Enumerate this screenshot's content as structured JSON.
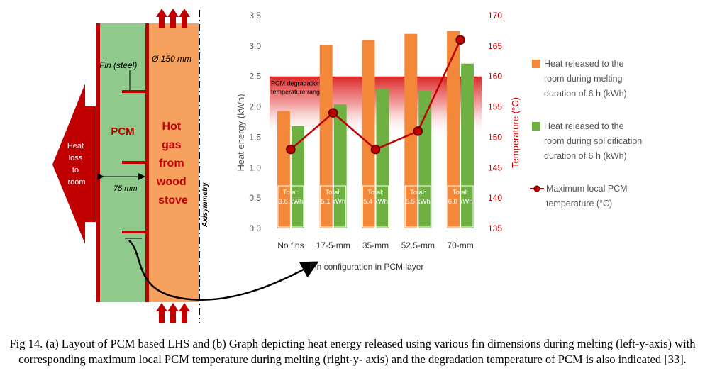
{
  "schematic": {
    "heat_loss_label": [
      "Heat",
      "loss",
      "to",
      "room"
    ],
    "pcm_label": "PCM",
    "fin_label": "Fin (steel)",
    "diameter_label": "Ø 150 mm",
    "hot_gas_label": [
      "Hot",
      "gas",
      "from",
      "wood",
      "stove"
    ],
    "axisymmetry_label": "Axisymmetry",
    "thickness_label": "75 mm",
    "colors": {
      "pcm": "#8fc98b",
      "hot_gas": "#f7a15f",
      "wall": "#c00000",
      "arrow": "#c00000"
    }
  },
  "chart_data": {
    "type": "bar",
    "categories": [
      "No fins",
      "17-5-mm",
      "35-mm",
      "52.5-mm",
      "70-mm"
    ],
    "xlabel": "Fin configuration in PCM layer",
    "ylabel": "Heat energy (kWh)",
    "y2label": "Temperature (°C)",
    "ylim": [
      0,
      3.5
    ],
    "yticks": [
      "0.0",
      "0.5",
      "1.0",
      "1.5",
      "2.0",
      "2.5",
      "3.0",
      "3.5"
    ],
    "y2lim": [
      135,
      170
    ],
    "y2ticks": [
      "135",
      "140",
      "145",
      "150",
      "155",
      "160",
      "165",
      "170"
    ],
    "series": [
      {
        "name": "Heat released to the room during melting duration of 6 h (kWh)",
        "legend_lines": [
          "Heat released to the",
          "room during melting",
          "duration of 6 h (kWh)"
        ],
        "type": "bar",
        "color": "#f4883a",
        "values": [
          1.93,
          3.02,
          3.1,
          3.2,
          3.25
        ]
      },
      {
        "name": "Heat released to the room during solidification duration of 6 h (kWh)",
        "legend_lines": [
          "Heat released to the",
          "room during solidification",
          "duration of 6 h (kWh)"
        ],
        "type": "bar",
        "color": "#6fb043",
        "values": [
          1.68,
          2.04,
          2.29,
          2.27,
          2.71
        ]
      },
      {
        "name": "Maximum local PCM temperature (°C)",
        "legend_lines": [
          "Maximum local PCM",
          "temperature (°C)"
        ],
        "type": "line",
        "axis": "right",
        "color": "#c00000",
        "values": [
          148,
          154,
          148,
          151,
          166
        ]
      }
    ],
    "totals": [
      {
        "prefix": "Total:",
        "value": "3.6 kWh"
      },
      {
        "prefix": "Total:",
        "value": "5.1 kWh"
      },
      {
        "prefix": "Total:",
        "value": "5.4 kWh"
      },
      {
        "prefix": "Total:",
        "value": "5.5 kWh"
      },
      {
        "prefix": "Total:",
        "value": "6.0 kWh"
      }
    ],
    "degradation_band": {
      "label_lines": [
        "PCM degradation",
        "temperature range"
      ],
      "from": 1.5,
      "to": 2.5,
      "color": "#d40000"
    },
    "grid": false,
    "legend_position": "right"
  },
  "caption": "Fig 14. (a) Layout of PCM based LHS and (b) Graph depicting heat energy released using various fin dimensions during melting (left-y-axis) with corresponding maximum local PCM temperature during melting (right-y- axis) and the degradation temperature of PCM is also indicated [33]."
}
